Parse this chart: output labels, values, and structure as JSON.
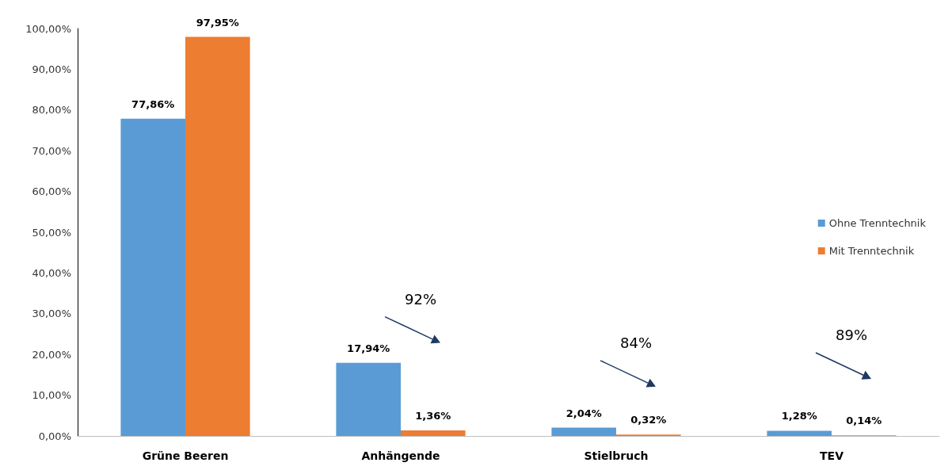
{
  "chart_data": {
    "type": "bar",
    "categories": [
      "Grüne Beeren",
      "Anhängende",
      "Stielbruch",
      "TEV"
    ],
    "series": [
      {
        "name": "Ohne Trenntechnik",
        "color": "#5b9bd5",
        "values": [
          77.86,
          17.94,
          2.04,
          1.28
        ],
        "value_labels": [
          "77,86%",
          "17,94%",
          "2,04%",
          "1,28%"
        ]
      },
      {
        "name": "Mit Trenntechnik",
        "color": "#ed7d31",
        "values": [
          97.95,
          1.36,
          0.32,
          0.14
        ],
        "value_labels": [
          "97,95%",
          "1,36%",
          "0,32%",
          "0,14%"
        ]
      }
    ],
    "ylim": [
      0,
      100
    ],
    "yticks": [
      {
        "value": 0,
        "label": "0,00%"
      },
      {
        "value": 10,
        "label": "10,00%"
      },
      {
        "value": 20,
        "label": "20,00%"
      },
      {
        "value": 30,
        "label": "30,00%"
      },
      {
        "value": 40,
        "label": "40,00%"
      },
      {
        "value": 50,
        "label": "50,00%"
      },
      {
        "value": 60,
        "label": "60,00%"
      },
      {
        "value": 70,
        "label": "70,00%"
      },
      {
        "value": 80,
        "label": "80,00%"
      },
      {
        "value": 90,
        "label": "90,00%"
      },
      {
        "value": 100,
        "label": "100,00%"
      }
    ],
    "annotations": [
      "92%",
      "84%",
      "89%"
    ],
    "grid": false,
    "legend": "right"
  }
}
